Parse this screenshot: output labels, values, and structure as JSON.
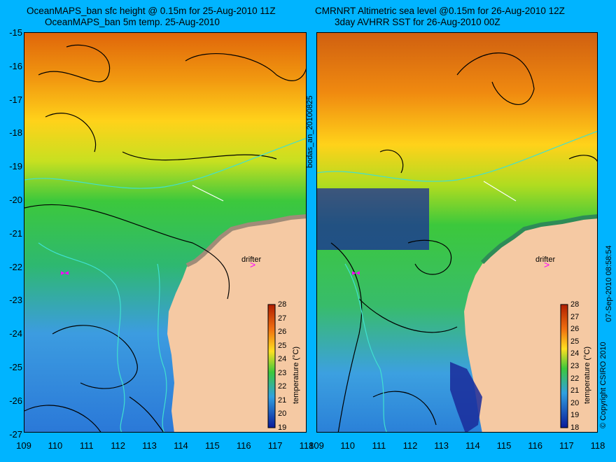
{
  "left_panel": {
    "title_line1": "OceanMAPS_ban sfc height @ 0.15m for 25-Aug-2010 11Z",
    "title_line2": "OceanMAPS_ban 5m temp. 25-Aug-2010",
    "side_label": "bodas_an_20100825",
    "drifter_label": "drifter",
    "colorbar": {
      "label": "temperature (°C)",
      "ticks": [
        "28",
        "27",
        "26",
        "25",
        "24",
        "23",
        "22",
        "21",
        "20",
        "19"
      ]
    }
  },
  "right_panel": {
    "title_line1": "CMRNRT Altimetric sea level  @0.15m  for 26-Aug-2010 12Z",
    "title_line2": "3day AVHRR SST for 26-Aug-2010 00Z",
    "side_label": "07-Sep-2010 08:58:54",
    "copyright": "© Copyright CSIRO 2010",
    "drifter_label": "drifter",
    "colorbar": {
      "label": "temperature (°C)",
      "ticks": [
        "28",
        "27",
        "26",
        "25",
        "24",
        "23",
        "22",
        "21",
        "20",
        "19",
        "18"
      ]
    }
  },
  "axes": {
    "y_ticks": [
      "-15",
      "-16",
      "-17",
      "-18",
      "-19",
      "-20",
      "-21",
      "-22",
      "-23",
      "-24",
      "-25",
      "-26",
      "-27"
    ],
    "x_ticks": [
      "109",
      "110",
      "111",
      "112",
      "113",
      "114",
      "115",
      "116",
      "117",
      "118"
    ]
  },
  "colors": {
    "background": "#00b4ff",
    "land": "#f5c9a3",
    "contour": "#000000",
    "isobath": "#40e0d0",
    "drifter_marker": "#ff00ff"
  }
}
